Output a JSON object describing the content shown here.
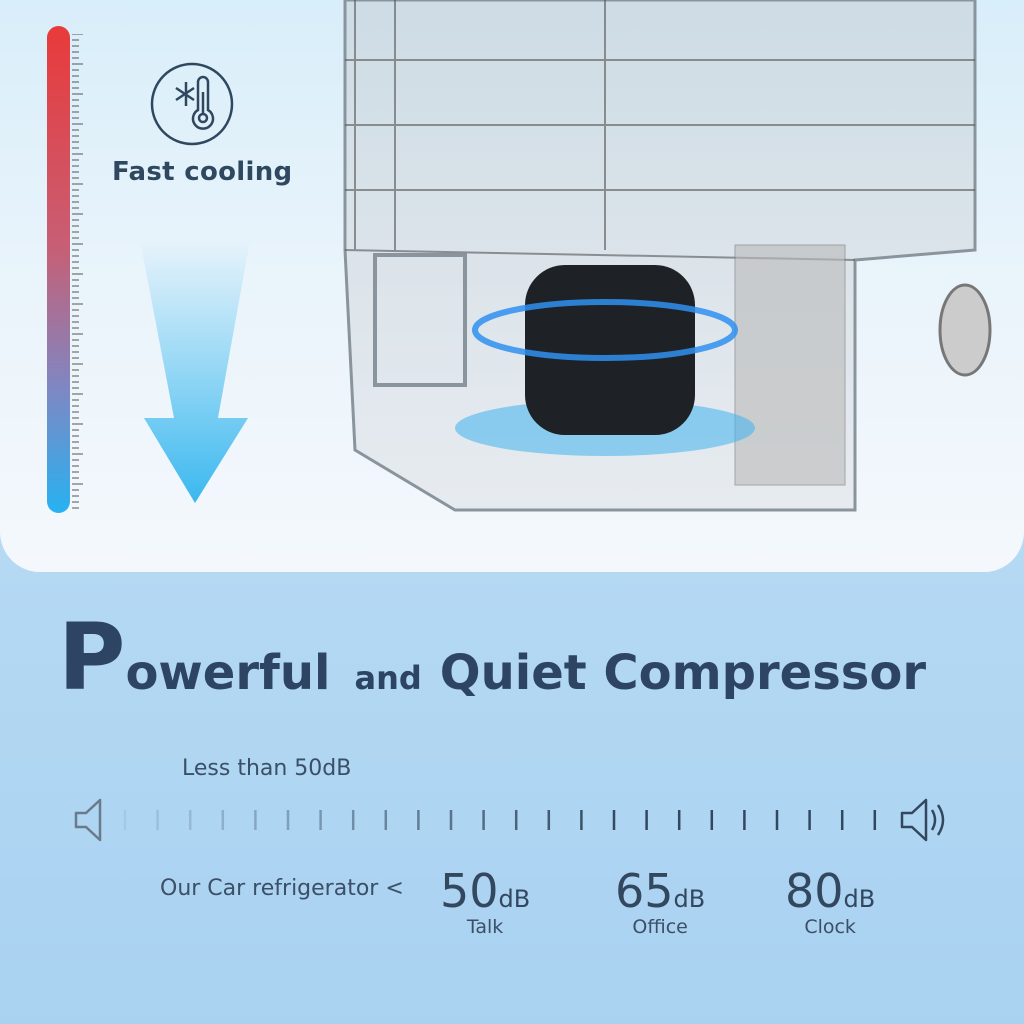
{
  "feature": {
    "icon": "snowflake-thermometer-icon",
    "label": "Fast cooling"
  },
  "headline": {
    "first_letter": "P",
    "word1_rest": "owerful",
    "connector": "and",
    "rest": "Quiet Compressor"
  },
  "noise": {
    "caption": "Less than 50dB",
    "product_label": "Our Car refrigerator <",
    "levels": [
      {
        "value": "50",
        "unit": "dB",
        "label": "Talk"
      },
      {
        "value": "65",
        "unit": "dB",
        "label": "Office"
      },
      {
        "value": "80",
        "unit": "dB",
        "label": "Clock"
      }
    ]
  },
  "colors": {
    "thermometer_hot": "#e93a3a",
    "thermometer_cold": "#27b2f2",
    "text": "#2d4563",
    "arrow": "#3ab8ef"
  }
}
